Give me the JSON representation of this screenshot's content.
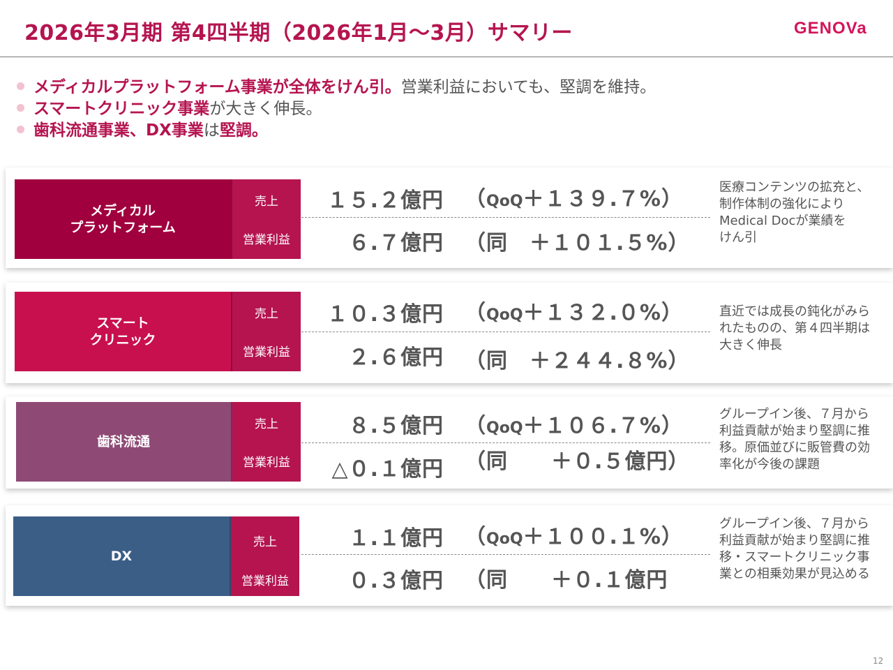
{
  "header": {
    "title": "2026年3月期 第4四半期（2026年1月～3月）サマリー",
    "logo": "GENOVa"
  },
  "bullets": [
    {
      "hl": "メディカルプラットフォーム事業が全体をけん引。",
      "rest": "営業利益においても、堅調を維持。",
      "hl2": "",
      "rest2": ""
    },
    {
      "hl": "スマートクリニック事業",
      "rest": "が大きく伸長。",
      "hl2": "",
      "rest2": ""
    },
    {
      "hl": "歯科流通事業、DX事業",
      "rest": "は",
      "hl2": "堅調。",
      "rest2": ""
    }
  ],
  "segments": [
    {
      "name": "メディカル\nプラットフォーム",
      "color": "#a0003e",
      "metric_color": "#b5144f",
      "sales_label": "売上",
      "op_label": "営業利益",
      "sales": "１５.２億円",
      "sales_qoq_open": "（",
      "sales_qoq_tag": "QoQ",
      "sales_qoq": "＋１３９.７%）",
      "op": "６.７億円",
      "op_qoq": "（同　＋１０１.５%）",
      "comment": "医療コンテンツの拡充と、\n制作体制の強化により\nMedical Docが業績を\nけん引"
    },
    {
      "name": "スマート\nクリニック",
      "color": "#c8104e",
      "metric_color": "#b5144f",
      "sales_label": "売上",
      "op_label": "営業利益",
      "sales": "１０.３億円",
      "sales_qoq_open": "（",
      "sales_qoq_tag": "QoQ",
      "sales_qoq": "＋１３２.０%）",
      "op": "２.６億円",
      "op_qoq": "（同　＋２４４.８%）",
      "comment": "直近では成長の鈍化がみら\nれたものの、第４四半期は\n大きく伸長"
    },
    {
      "name": "歯科流通",
      "color": "#8e4a75",
      "metric_color": "#b5144f",
      "sales_label": "売上",
      "op_label": "営業利益",
      "sales": "８.５億円",
      "sales_qoq_open": "（",
      "sales_qoq_tag": "QoQ",
      "sales_qoq": "＋１０６.７%）",
      "op": "△０.１億円",
      "op_qoq": "（同　　＋０.５億円）",
      "comment": "グループイン後、７月から\n利益貢献が始まり堅調に推\n移。原価並びに販管費の効\n率化が今後の課題"
    },
    {
      "name": "DX",
      "color": "#3b5e87",
      "metric_color": "#b5144f",
      "sales_label": "売上",
      "op_label": "営業利益",
      "sales": "１.１億円",
      "sales_qoq_open": "（",
      "sales_qoq_tag": "QoQ",
      "sales_qoq": "＋１００.１%）",
      "op": "０.３億円",
      "op_qoq": "（同　　＋０.１億円",
      "comment": "グループイン後、７月から\n利益貢献が始まり堅調に推\n移・スマートクリニック事\n業との相乗効果が見込める"
    }
  ],
  "page_number": "12"
}
